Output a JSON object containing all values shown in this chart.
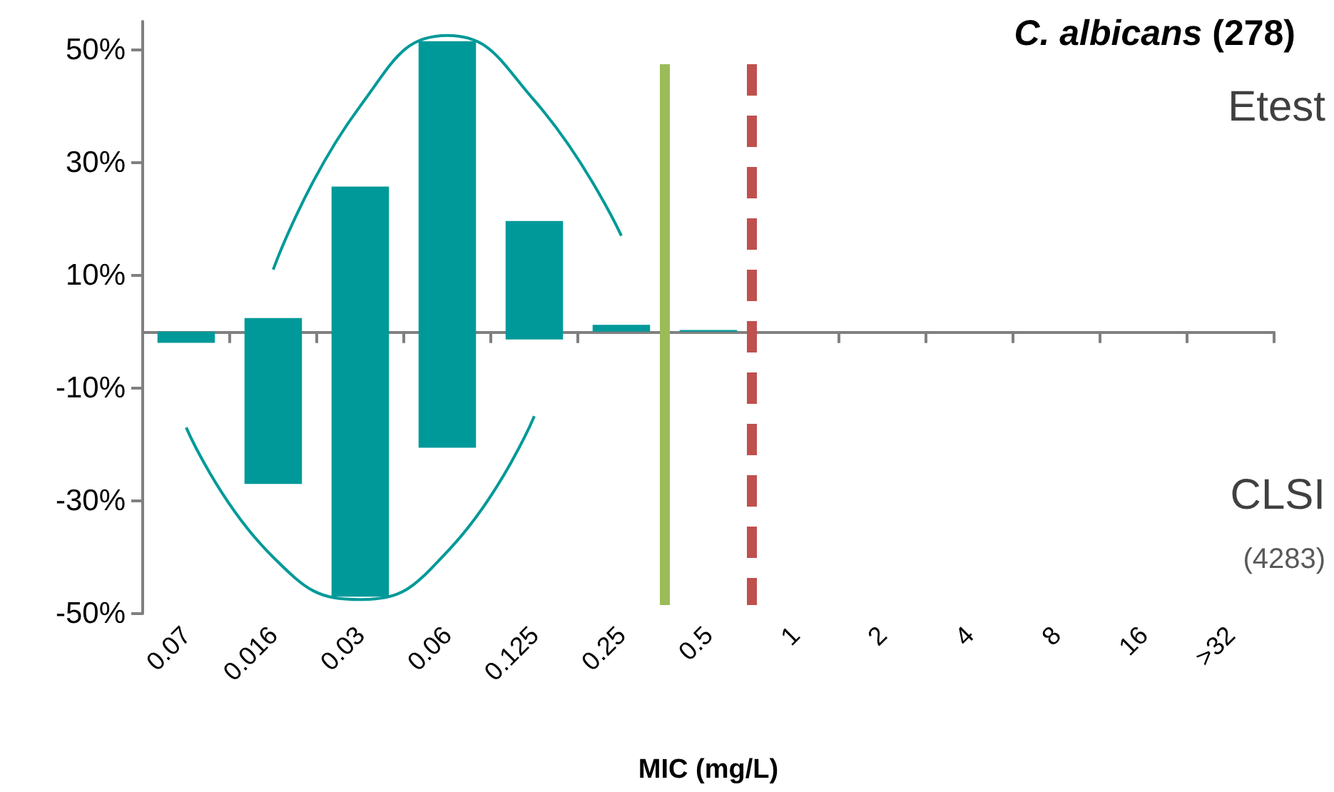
{
  "chart_data": {
    "type": "bar",
    "title": "C. albicans (278)",
    "xlabel": "MIC (mg/L)",
    "categories": [
      "0.07",
      "0.016",
      "0.03",
      "0.06",
      "0.125",
      "0.25",
      "0.5",
      "1",
      "2",
      "4",
      "8",
      "16",
      ">32"
    ],
    "series": [
      {
        "color": "#009999",
        "base": [
          -2,
          -27,
          -47,
          -20.6,
          -1.4,
          0,
          0,
          null,
          null,
          null,
          null,
          null,
          null
        ],
        "values": [
          2,
          29.4,
          72.7,
          72.1,
          21,
          1.2,
          0.3,
          null,
          null,
          null,
          null,
          null,
          null
        ]
      },
      {
        "type": "line",
        "color": "#009999",
        "values": [
          null,
          11,
          40,
          52.5,
          41,
          17,
          null,
          null,
          null,
          null,
          null,
          null,
          null
        ]
      },
      {
        "type": "line",
        "color": "#009999",
        "values": [
          -17,
          -40,
          -47.5,
          -39,
          -15,
          null,
          null,
          null,
          null,
          null,
          null,
          null,
          null
        ]
      }
    ],
    "ylim": [
      -50,
      55
    ],
    "yticks": [
      {
        "value": -50,
        "label": "-50%"
      },
      {
        "value": -30,
        "label": "-30%"
      },
      {
        "value": -10,
        "label": "-10%"
      },
      {
        "value": 10,
        "label": "10%"
      },
      {
        "value": 30,
        "label": "30%"
      },
      {
        "value": 50,
        "label": "50%"
      }
    ],
    "ref_lines": [
      {
        "axis": "x",
        "value": "0.25",
        "color": "#9bbb59",
        "line_style": "solid"
      },
      {
        "axis": "x",
        "value": "0.5",
        "color": "#c0504d",
        "line_style": "dashed"
      }
    ],
    "annotations": [
      "Etest",
      "CLSI",
      "(4283)"
    ],
    "grid": false,
    "marker": "none"
  }
}
